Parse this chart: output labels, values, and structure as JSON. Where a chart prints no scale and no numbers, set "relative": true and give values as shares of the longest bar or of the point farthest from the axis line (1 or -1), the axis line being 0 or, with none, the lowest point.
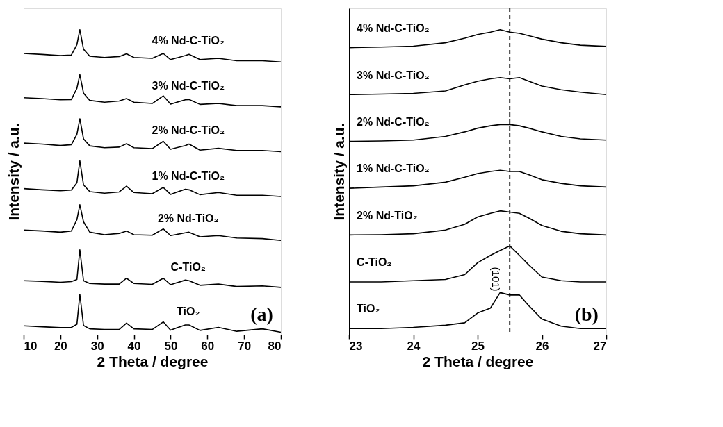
{
  "chart_data": [
    {
      "type": "line",
      "relative": true,
      "xlabel": "2 Theta / degree",
      "ylabel": "Intensity / a.u.",
      "xlim": [
        10,
        80
      ],
      "xticks": [
        10,
        20,
        30,
        40,
        50,
        60,
        70,
        80
      ],
      "tick_labels": "x",
      "legend": false,
      "grid": false,
      "line_style": "solid",
      "marker": "none",
      "x": [
        10,
        15,
        20,
        23,
        24.5,
        25.3,
        26.3,
        28,
        32,
        36,
        38,
        40,
        45,
        48,
        50,
        54,
        55,
        58,
        63,
        68,
        75,
        80
      ],
      "series": [
        {
          "name": "TiO₂",
          "color": "#000000",
          "values": [
            0.029,
            0.026,
            0.023,
            0.024,
            0.034,
            0.132,
            0.03,
            0.019,
            0.017,
            0.017,
            0.038,
            0.019,
            0.017,
            0.042,
            0.015,
            0.032,
            0.032,
            0.014,
            0.024,
            0.011,
            0.019,
            0.008
          ]
        },
        {
          "name": "C-TiO₂",
          "color": "#000000",
          "values": [
            0.177,
            0.175,
            0.172,
            0.174,
            0.181,
            0.278,
            0.177,
            0.168,
            0.166,
            0.166,
            0.185,
            0.168,
            0.165,
            0.185,
            0.164,
            0.179,
            0.177,
            0.162,
            0.166,
            0.158,
            0.16,
            0.155
          ]
        },
        {
          "name": "2% Nd-TiO₂",
          "color": "#000000",
          "values": [
            0.343,
            0.34,
            0.336,
            0.34,
            0.377,
            0.426,
            0.37,
            0.336,
            0.328,
            0.332,
            0.34,
            0.328,
            0.326,
            0.347,
            0.325,
            0.334,
            0.336,
            0.321,
            0.325,
            0.317,
            0.315,
            0.309
          ]
        },
        {
          "name": "1% Nd-C-TiO₂",
          "color": "#000000",
          "values": [
            0.479,
            0.475,
            0.472,
            0.474,
            0.498,
            0.57,
            0.491,
            0.469,
            0.464,
            0.468,
            0.487,
            0.466,
            0.462,
            0.483,
            0.46,
            0.477,
            0.475,
            0.459,
            0.466,
            0.457,
            0.457,
            0.453
          ]
        },
        {
          "name": "2% Nd-C-TiO₂",
          "color": "#000000",
          "values": [
            0.628,
            0.625,
            0.62,
            0.623,
            0.657,
            0.708,
            0.642,
            0.619,
            0.613,
            0.615,
            0.626,
            0.613,
            0.61,
            0.634,
            0.608,
            0.62,
            0.625,
            0.605,
            0.611,
            0.604,
            0.604,
            0.6
          ]
        },
        {
          "name": "3% Nd-C-TiO₂",
          "color": "#000000",
          "values": [
            0.777,
            0.774,
            0.77,
            0.771,
            0.808,
            0.853,
            0.792,
            0.768,
            0.762,
            0.766,
            0.774,
            0.762,
            0.758,
            0.783,
            0.756,
            0.77,
            0.771,
            0.755,
            0.758,
            0.751,
            0.751,
            0.747
          ]
        },
        {
          "name": "4% Nd-C-TiO₂",
          "color": "#000000",
          "values": [
            0.922,
            0.919,
            0.915,
            0.917,
            0.951,
            1.0,
            0.936,
            0.913,
            0.909,
            0.912,
            0.921,
            0.909,
            0.906,
            0.922,
            0.902,
            0.915,
            0.919,
            0.902,
            0.906,
            0.898,
            0.898,
            0.894
          ]
        }
      ],
      "annotations": [
        "(a)"
      ]
    },
    {
      "type": "line",
      "relative": true,
      "xlabel": "2 Theta / degree",
      "ylabel": "Intensity / a.u.",
      "xlim": [
        23,
        27
      ],
      "xticks": [
        23,
        24,
        25,
        26,
        27
      ],
      "tick_labels": "x",
      "legend": false,
      "grid": false,
      "line_style": "solid",
      "marker": "none",
      "x": [
        23,
        23.5,
        24,
        24.5,
        24.8,
        25,
        25.2,
        25.35,
        25.5,
        25.65,
        25.8,
        26,
        26.3,
        26.6,
        27
      ],
      "series": [
        {
          "name": "TiO₂",
          "color": "#000000",
          "values": [
            0.02,
            0.02,
            0.024,
            0.031,
            0.039,
            0.071,
            0.087,
            0.138,
            0.13,
            0.13,
            0.094,
            0.051,
            0.028,
            0.02,
            0.02
          ]
        },
        {
          "name": "C-TiO₂",
          "color": "#000000",
          "values": [
            0.173,
            0.173,
            0.177,
            0.181,
            0.197,
            0.236,
            0.26,
            0.276,
            0.291,
            0.26,
            0.228,
            0.189,
            0.177,
            0.173,
            0.173
          ]
        },
        {
          "name": "2% Nd-TiO₂",
          "color": "#000000",
          "values": [
            0.327,
            0.328,
            0.331,
            0.343,
            0.362,
            0.386,
            0.398,
            0.406,
            0.402,
            0.398,
            0.382,
            0.358,
            0.339,
            0.331,
            0.327
          ]
        },
        {
          "name": "1% Nd-C-TiO₂",
          "color": "#000000",
          "values": [
            0.48,
            0.484,
            0.488,
            0.5,
            0.516,
            0.528,
            0.535,
            0.539,
            0.535,
            0.535,
            0.524,
            0.508,
            0.496,
            0.488,
            0.484
          ]
        },
        {
          "name": "2% Nd-C-TiO₂",
          "color": "#000000",
          "values": [
            0.634,
            0.635,
            0.638,
            0.65,
            0.665,
            0.677,
            0.685,
            0.689,
            0.689,
            0.685,
            0.677,
            0.665,
            0.65,
            0.642,
            0.638
          ]
        },
        {
          "name": "3% Nd-C-TiO₂",
          "color": "#000000",
          "values": [
            0.787,
            0.789,
            0.791,
            0.799,
            0.819,
            0.831,
            0.839,
            0.843,
            0.839,
            0.843,
            0.831,
            0.815,
            0.803,
            0.795,
            0.787
          ]
        },
        {
          "name": "4% Nd-C-TiO₂",
          "color": "#000000",
          "values": [
            0.941,
            0.943,
            0.946,
            0.957,
            0.972,
            0.984,
            0.992,
            1.0,
            0.992,
            0.988,
            0.98,
            0.969,
            0.957,
            0.949,
            0.945
          ]
        }
      ],
      "ref_lines": [
        {
          "axis": "x",
          "value": 25.5,
          "color": "#000000",
          "line_style": "dashed"
        }
      ],
      "annotations": [
        "(101)",
        "(b)"
      ]
    }
  ]
}
